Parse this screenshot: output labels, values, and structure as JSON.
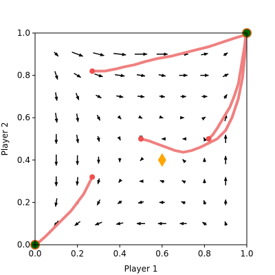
{
  "chart_data": {
    "type": "quiver",
    "xlabel": "Player 1",
    "ylabel": "Player 2",
    "xlim": [
      0.0,
      1.0
    ],
    "ylim": [
      0.0,
      1.0
    ],
    "xticks": [
      "0.0",
      "0.2",
      "0.4",
      "0.6",
      "0.8",
      "1.0"
    ],
    "yticks": [
      "0.0",
      "0.2",
      "0.4",
      "0.6",
      "0.8",
      "1.0"
    ],
    "grid": false,
    "arrow_grid": {
      "x": [
        0.1,
        0.2,
        0.3,
        0.4,
        0.5,
        0.6,
        0.7,
        0.8,
        0.9
      ],
      "y": [
        0.1,
        0.2,
        0.3,
        0.4,
        0.5,
        0.6,
        0.7,
        0.8,
        0.9
      ],
      "rows_top_to_bottom": [
        [
          [
            0.03,
            -0.03
          ],
          [
            0.08,
            -0.03
          ],
          [
            0.08,
            -0.02
          ],
          [
            0.09,
            -0.01
          ],
          [
            0.09,
            0
          ],
          [
            0.08,
            0
          ],
          [
            0.07,
            0
          ],
          [
            0.05,
            0.01
          ],
          [
            0.03,
            0.02
          ]
        ],
        [
          [
            0.02,
            -0.06
          ],
          [
            0.05,
            -0.03
          ],
          [
            0.06,
            -0.02
          ],
          [
            0.07,
            -0.01
          ],
          [
            0.06,
            -0.01
          ],
          [
            0.05,
            -0.01
          ],
          [
            0.06,
            0
          ],
          [
            0.06,
            0
          ],
          [
            0.04,
            0.02
          ]
        ],
        [
          [
            0.01,
            -0.06
          ],
          [
            0.02,
            -0.05
          ],
          [
            0.04,
            -0.02
          ],
          [
            0.05,
            -0.01
          ],
          [
            0.05,
            -0.005
          ],
          [
            0.04,
            -0.005
          ],
          [
            0.04,
            0
          ],
          [
            0.04,
            0
          ],
          [
            0.02,
            0.03
          ]
        ],
        [
          [
            0.01,
            -0.07
          ],
          [
            0.01,
            -0.06
          ],
          [
            0.02,
            -0.04
          ],
          [
            0.02,
            -0.02
          ],
          [
            0.02,
            -0.01
          ],
          [
            0.015,
            -0.005
          ],
          [
            0.01,
            0
          ],
          [
            0.015,
            0.01
          ],
          [
            0.01,
            0.05
          ]
        ],
        [
          [
            0,
            -0.07
          ],
          [
            0.01,
            -0.06
          ],
          [
            0.01,
            -0.04
          ],
          [
            0.01,
            -0.02
          ],
          [
            0,
            -0.01
          ],
          [
            -0.005,
            0
          ],
          [
            -0.01,
            0
          ],
          [
            -0.01,
            0.02
          ],
          [
            0,
            0.06
          ]
        ],
        [
          [
            0,
            -0.08
          ],
          [
            0,
            -0.07
          ],
          [
            0,
            -0.05
          ],
          [
            0,
            -0.03
          ],
          [
            -0.01,
            -0.01
          ],
          [
            -0.015,
            0
          ],
          [
            -0.01,
            0.01
          ],
          [
            0,
            0.03
          ],
          [
            0,
            0.06
          ]
        ],
        [
          [
            0,
            -0.07
          ],
          [
            -0.005,
            -0.06
          ],
          [
            -0.01,
            -0.04
          ],
          [
            -0.015,
            -0.02
          ],
          [
            -0.02,
            0
          ],
          [
            -0.03,
            0.01
          ],
          [
            -0.02,
            0.01
          ],
          [
            0,
            0.03
          ],
          [
            0,
            0.06
          ]
        ],
        [
          [
            -0.01,
            -0.06
          ],
          [
            -0.02,
            -0.05
          ],
          [
            -0.02,
            -0.04
          ],
          [
            -0.03,
            -0.02
          ],
          [
            -0.04,
            -0.01
          ],
          [
            -0.04,
            0
          ],
          [
            -0.03,
            0.01
          ],
          [
            -0.01,
            0.03
          ],
          [
            0,
            0.04
          ]
        ],
        [
          [
            -0.03,
            -0.04
          ],
          [
            -0.04,
            -0.03
          ],
          [
            -0.05,
            -0.02
          ],
          [
            -0.05,
            -0.01
          ],
          [
            -0.06,
            0
          ],
          [
            -0.06,
            0
          ],
          [
            -0.05,
            0
          ],
          [
            -0.03,
            0.02
          ],
          [
            -0.01,
            0.03
          ]
        ]
      ]
    },
    "trajectories": [
      {
        "start": [
          0.27,
          0.82
        ],
        "points": [
          [
            0.27,
            0.82
          ],
          [
            0.33,
            0.82
          ],
          [
            0.38,
            0.83
          ],
          [
            0.42,
            0.84
          ],
          [
            0.47,
            0.85
          ],
          [
            0.52,
            0.865
          ],
          [
            0.58,
            0.88
          ],
          [
            0.64,
            0.89
          ],
          [
            0.7,
            0.905
          ],
          [
            0.76,
            0.92
          ],
          [
            0.82,
            0.935
          ],
          [
            0.88,
            0.955
          ],
          [
            0.94,
            0.975
          ],
          [
            0.99,
            0.99
          ]
        ]
      },
      {
        "start": [
          0.5,
          0.5
        ],
        "points": [
          [
            0.5,
            0.5
          ],
          [
            0.54,
            0.49
          ],
          [
            0.58,
            0.475
          ],
          [
            0.62,
            0.46
          ],
          [
            0.66,
            0.445
          ],
          [
            0.7,
            0.437
          ],
          [
            0.74,
            0.445
          ],
          [
            0.78,
            0.46
          ],
          [
            0.82,
            0.48
          ],
          [
            0.86,
            0.5
          ],
          [
            0.9,
            0.54
          ],
          [
            0.93,
            0.6
          ],
          [
            0.96,
            0.69
          ],
          [
            0.98,
            0.79
          ],
          [
            0.99,
            0.89
          ],
          [
            0.995,
            0.99
          ]
        ]
      },
      {
        "start": [
          0.82,
          0.5
        ],
        "points": [
          [
            0.82,
            0.5
          ],
          [
            0.84,
            0.52
          ],
          [
            0.86,
            0.55
          ],
          [
            0.89,
            0.6
          ],
          [
            0.92,
            0.65
          ],
          [
            0.94,
            0.7
          ],
          [
            0.96,
            0.76
          ],
          [
            0.97,
            0.82
          ],
          [
            0.98,
            0.88
          ],
          [
            0.99,
            0.94
          ],
          [
            0.995,
            0.99
          ]
        ]
      },
      {
        "start": [
          0.27,
          0.32
        ],
        "points": [
          [
            0.27,
            0.32
          ],
          [
            0.25,
            0.28
          ],
          [
            0.23,
            0.24
          ],
          [
            0.2,
            0.2
          ],
          [
            0.17,
            0.16
          ],
          [
            0.13,
            0.12
          ],
          [
            0.09,
            0.08
          ],
          [
            0.05,
            0.04
          ],
          [
            0.01,
            0.005
          ]
        ]
      }
    ],
    "equilibria": [
      {
        "kind": "stable",
        "x": 0.0,
        "y": 0.0,
        "color": "#006400"
      },
      {
        "kind": "stable",
        "x": 1.0,
        "y": 1.0,
        "color": "#006400"
      },
      {
        "kind": "saddle",
        "x": 0.6,
        "y": 0.4,
        "color": "#ffa500"
      }
    ],
    "colors": {
      "trajectory": "#f08080",
      "arrow": "#000000",
      "equilibrium_outer": "#e0601a"
    }
  }
}
